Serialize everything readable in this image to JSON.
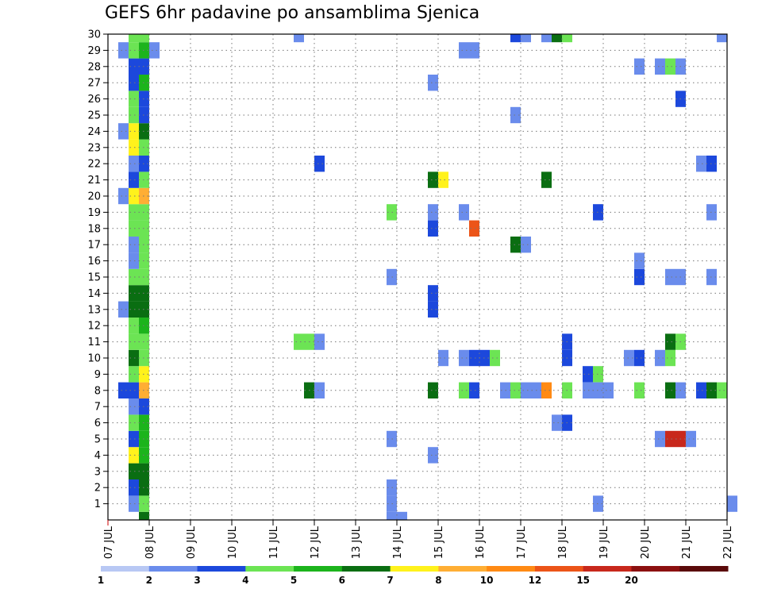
{
  "chart_data": {
    "type": "heatmap",
    "title": "GEFS 6hr padavine po ansamblima Sjenica",
    "xlabel": "",
    "ylabel": "",
    "x_ticks": [
      "07 JUL",
      "08 JUL",
      "09 JUL",
      "10 JUL",
      "11 JUL",
      "12 JUL",
      "13 JUL",
      "14 JUL",
      "15 JUL",
      "16 JUL",
      "17 JUL",
      "18 JUL",
      "19 JUL",
      "20 JUL",
      "21 JUL",
      "22 JUL"
    ],
    "x_range": [
      0,
      15
    ],
    "x_step_days": 0.25,
    "y_ticks": [
      "1",
      "2",
      "3",
      "4",
      "5",
      "6",
      "7",
      "8",
      "9",
      "10",
      "11",
      "12",
      "13",
      "14",
      "15",
      "16",
      "17",
      "18",
      "19",
      "20",
      "21",
      "22",
      "23",
      "24",
      "25",
      "26",
      "27",
      "28",
      "29",
      "30"
    ],
    "y_range": [
      0,
      30
    ],
    "grid": true,
    "colorbar": {
      "labels": [
        "1",
        "2",
        "3",
        "4",
        "5",
        "6",
        "7",
        "8",
        "10",
        "12",
        "15",
        "20"
      ],
      "colors": [
        "#b8c8f4",
        "#6a8cec",
        "#1c48dc",
        "#6ce454",
        "#1cb41c",
        "#0a6e12",
        "#fff21c",
        "#ffae34",
        "#ff8a14",
        "#ec5418",
        "#c8281c",
        "#8c1010",
        "#5a0a0a"
      ],
      "position": "bottom"
    },
    "cells": [
      [
        0.5,
        0,
        1
      ],
      [
        0.5,
        1,
        2
      ],
      [
        0.5,
        2,
        5
      ],
      [
        0.5,
        3,
        6
      ],
      [
        0.5,
        4,
        2
      ],
      [
        0.5,
        5,
        3
      ],
      [
        0.5,
        6,
        1
      ],
      [
        0.5,
        7,
        2
      ],
      [
        0.5,
        8,
        3
      ],
      [
        0.5,
        9,
        5
      ],
      [
        0.5,
        10,
        3
      ],
      [
        0.5,
        11,
        3
      ],
      [
        0.5,
        12,
        5
      ],
      [
        0.5,
        13,
        5
      ],
      [
        0.5,
        14,
        3
      ],
      [
        0.5,
        15,
        1
      ],
      [
        0.5,
        16,
        1
      ],
      [
        0.5,
        17,
        3
      ],
      [
        0.5,
        18,
        3
      ],
      [
        0.5,
        19,
        6
      ],
      [
        0.5,
        20,
        2
      ],
      [
        0.5,
        21,
        1
      ],
      [
        0.5,
        22,
        6
      ],
      [
        0.5,
        23,
        6
      ],
      [
        0.5,
        24,
        3
      ],
      [
        0.5,
        25,
        3
      ],
      [
        0.5,
        26,
        2
      ],
      [
        0.5,
        27,
        2
      ],
      [
        0.5,
        28,
        3
      ],
      [
        0.5,
        29,
        3
      ],
      [
        0.75,
        -1,
        5
      ],
      [
        0.75,
        0,
        3
      ],
      [
        0.75,
        1,
        5
      ],
      [
        0.75,
        2,
        5
      ],
      [
        0.75,
        3,
        4
      ],
      [
        0.75,
        4,
        4
      ],
      [
        0.75,
        5,
        4
      ],
      [
        0.75,
        6,
        2
      ],
      [
        0.75,
        7,
        7
      ],
      [
        0.75,
        8,
        6
      ],
      [
        0.75,
        9,
        3
      ],
      [
        0.75,
        10,
        3
      ],
      [
        0.75,
        11,
        4
      ],
      [
        0.75,
        12,
        5
      ],
      [
        0.75,
        13,
        5
      ],
      [
        0.75,
        14,
        3
      ],
      [
        0.75,
        15,
        3
      ],
      [
        0.75,
        16,
        3
      ],
      [
        0.75,
        17,
        3
      ],
      [
        0.75,
        18,
        3
      ],
      [
        0.75,
        19,
        7
      ],
      [
        0.75,
        20,
        3
      ],
      [
        0.75,
        21,
        2
      ],
      [
        0.75,
        22,
        3
      ],
      [
        0.75,
        23,
        5
      ],
      [
        0.75,
        24,
        2
      ],
      [
        0.75,
        25,
        2
      ],
      [
        0.75,
        26,
        4
      ],
      [
        0.75,
        27,
        2
      ],
      [
        0.75,
        28,
        4
      ],
      [
        0.75,
        29,
        3
      ],
      [
        0.25,
        7,
        2
      ],
      [
        0.25,
        12,
        1
      ],
      [
        0.25,
        19,
        1
      ],
      [
        0.25,
        23,
        1
      ],
      [
        0.25,
        28,
        1
      ],
      [
        1.0,
        28,
        1
      ],
      [
        4.5,
        10,
        3
      ],
      [
        4.75,
        7,
        5
      ],
      [
        4.75,
        10,
        3
      ],
      [
        5.0,
        7,
        1
      ],
      [
        5.0,
        10,
        1
      ],
      [
        5.0,
        21,
        2
      ],
      [
        4.5,
        29,
        1
      ],
      [
        6.75,
        -1,
        1
      ],
      [
        7.0,
        -1,
        1
      ],
      [
        6.75,
        0,
        1
      ],
      [
        6.75,
        1,
        1
      ],
      [
        6.75,
        4,
        1
      ],
      [
        6.75,
        14,
        1
      ],
      [
        6.75,
        18,
        3
      ],
      [
        7.75,
        3,
        1
      ],
      [
        7.75,
        7,
        5
      ],
      [
        7.75,
        12,
        2
      ],
      [
        7.75,
        13,
        2
      ],
      [
        7.75,
        17,
        2
      ],
      [
        7.75,
        18,
        1
      ],
      [
        7.75,
        20,
        5
      ],
      [
        8.0,
        20,
        6
      ],
      [
        7.75,
        26,
        1
      ],
      [
        8.0,
        9,
        1
      ],
      [
        8.5,
        7,
        3
      ],
      [
        8.5,
        9,
        1
      ],
      [
        8.75,
        7,
        2
      ],
      [
        8.75,
        9,
        2
      ],
      [
        8.5,
        18,
        1
      ],
      [
        8.75,
        17,
        9
      ],
      [
        8.5,
        28,
        1
      ],
      [
        8.75,
        28,
        1
      ],
      [
        9.0,
        9,
        2
      ],
      [
        9.25,
        9,
        3
      ],
      [
        9.5,
        7,
        1
      ],
      [
        9.75,
        7,
        3
      ],
      [
        10.0,
        7,
        1
      ],
      [
        10.25,
        7,
        1
      ],
      [
        10.75,
        5,
        1
      ],
      [
        11.0,
        5,
        2
      ],
      [
        11.0,
        7,
        3
      ],
      [
        11.0,
        9,
        2
      ],
      [
        11.0,
        10,
        2
      ],
      [
        10.5,
        7,
        8
      ],
      [
        10.5,
        20,
        5
      ],
      [
        10.5,
        29,
        1
      ],
      [
        9.75,
        16,
        5
      ],
      [
        10.0,
        16,
        1
      ],
      [
        9.75,
        24,
        1
      ],
      [
        9.75,
        29,
        2
      ],
      [
        10.0,
        29,
        1
      ],
      [
        11.0,
        29,
        3
      ],
      [
        10.75,
        29,
        5
      ],
      [
        11.5,
        8,
        2
      ],
      [
        11.75,
        8,
        3
      ],
      [
        11.5,
        7,
        1
      ],
      [
        11.75,
        7,
        1
      ],
      [
        12.0,
        7,
        1
      ],
      [
        11.75,
        0,
        1
      ],
      [
        11.75,
        18,
        2
      ],
      [
        12.5,
        9,
        1
      ],
      [
        12.75,
        9,
        2
      ],
      [
        12.75,
        7,
        3
      ],
      [
        12.75,
        14,
        2
      ],
      [
        12.75,
        15,
        1
      ],
      [
        12.75,
        27,
        1
      ],
      [
        13.25,
        4,
        1
      ],
      [
        13.5,
        4,
        10
      ],
      [
        13.75,
        4,
        10
      ],
      [
        14.0,
        4,
        1
      ],
      [
        13.25,
        9,
        1
      ],
      [
        13.5,
        9,
        3
      ],
      [
        13.5,
        10,
        5
      ],
      [
        13.75,
        10,
        3
      ],
      [
        13.5,
        7,
        5
      ],
      [
        13.75,
        7,
        1
      ],
      [
        13.25,
        27,
        1
      ],
      [
        13.5,
        27,
        3
      ],
      [
        13.75,
        27,
        1
      ],
      [
        13.5,
        14,
        1
      ],
      [
        13.75,
        14,
        1
      ],
      [
        13.75,
        25,
        2
      ],
      [
        14.25,
        7,
        2
      ],
      [
        14.5,
        7,
        5
      ],
      [
        14.75,
        7,
        3
      ],
      [
        14.25,
        21,
        1
      ],
      [
        14.5,
        21,
        2
      ],
      [
        14.5,
        14,
        1
      ],
      [
        14.5,
        18,
        1
      ],
      [
        14.75,
        29,
        1
      ],
      [
        15.0,
        0,
        1
      ]
    ]
  }
}
